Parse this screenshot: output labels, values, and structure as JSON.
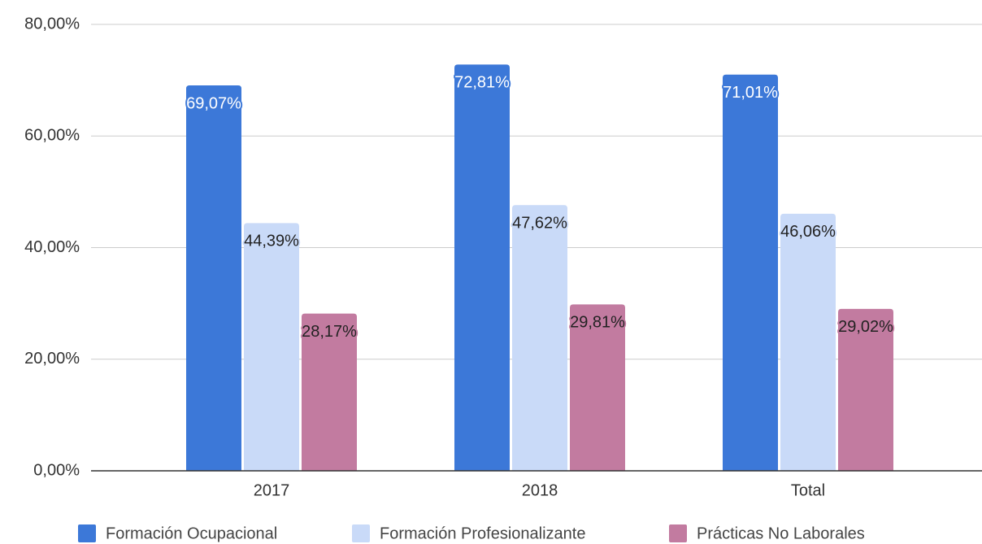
{
  "chart_data": {
    "type": "bar",
    "categories": [
      "2017",
      "2018",
      "Total"
    ],
    "series": [
      {
        "name": "Formación Ocupacional",
        "color": "#3c78d8",
        "values": [
          69.07,
          72.81,
          71.01
        ],
        "value_labels": [
          "69,07%",
          "72,81%",
          "71,01%"
        ]
      },
      {
        "name": "Formación Profesionalizante",
        "color": "#c9daf8",
        "values": [
          44.39,
          47.62,
          46.06
        ],
        "value_labels": [
          "44,39%",
          "47,62%",
          "46,06%"
        ]
      },
      {
        "name": "Prácticas No Laborales",
        "color": "#c27ba0",
        "values": [
          28.17,
          29.81,
          29.02
        ],
        "value_labels": [
          "28,17%",
          "29,81%",
          "29,02%"
        ]
      }
    ],
    "ylim": [
      0,
      80
    ],
    "yticks": [
      {
        "value": 0,
        "label": "0,00%"
      },
      {
        "value": 20,
        "label": "20,00%"
      },
      {
        "value": 40,
        "label": "40,00%"
      },
      {
        "value": 60,
        "label": "60,00%"
      },
      {
        "value": 80,
        "label": "80,00%"
      }
    ],
    "grid": true,
    "legend": "bottom"
  }
}
